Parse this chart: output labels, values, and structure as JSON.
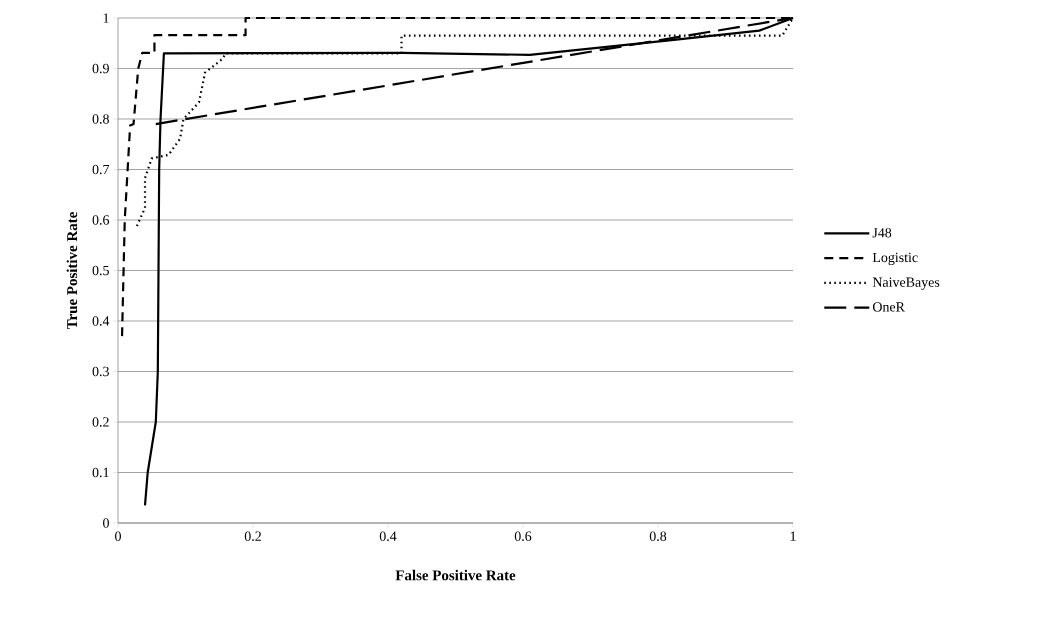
{
  "chart_data": {
    "type": "line",
    "xlabel": "False Positive Rate",
    "ylabel": "True Positive Rate",
    "xlim": [
      0,
      1
    ],
    "ylim": [
      0,
      1
    ],
    "xticks": [
      0,
      0.2,
      0.4,
      0.6,
      0.8,
      1
    ],
    "yticks": [
      0,
      0.1,
      0.2,
      0.3,
      0.4,
      0.5,
      0.6,
      0.7,
      0.8,
      0.9,
      1
    ],
    "grid": "y",
    "legend": "right",
    "marker": "none",
    "series": [
      {
        "name": "J48",
        "color": "#000000",
        "line_style": "solid",
        "x": [
          0.04,
          0.044,
          0.056,
          0.059,
          0.06,
          0.061,
          0.063,
          0.068,
          0.42,
          0.61,
          0.82,
          0.95,
          1
        ],
        "values": [
          0.035,
          0.1,
          0.2,
          0.3,
          0.5,
          0.7,
          0.8,
          0.93,
          0.931,
          0.927,
          0.956,
          0.975,
          1
        ]
      },
      {
        "name": "Logistic",
        "color": "#000000",
        "line_style": "dashed",
        "x": [
          0.006,
          0.01,
          0.018,
          0.023,
          0.03,
          0.036,
          0.054,
          0.054,
          0.189,
          0.189,
          1
        ],
        "values": [
          0.37,
          0.6,
          0.787,
          0.79,
          0.9,
          0.931,
          0.931,
          0.966,
          0.966,
          1,
          1
        ]
      },
      {
        "name": "NaiveBayes",
        "color": "#000000",
        "line_style": "dotted",
        "x": [
          0.028,
          0.04,
          0.04,
          0.05,
          0.075,
          0.092,
          0.097,
          0.12,
          0.129,
          0.154,
          0.16,
          0.42,
          0.42,
          0.984,
          1
        ],
        "values": [
          0.588,
          0.624,
          0.683,
          0.722,
          0.729,
          0.761,
          0.8,
          0.833,
          0.892,
          0.918,
          0.93,
          0.93,
          0.965,
          0.965,
          1
        ]
      },
      {
        "name": "OneR",
        "color": "#000000",
        "line_style": "long dashed",
        "x": [
          0.056,
          1
        ],
        "values": [
          0.79,
          1
        ]
      }
    ]
  }
}
